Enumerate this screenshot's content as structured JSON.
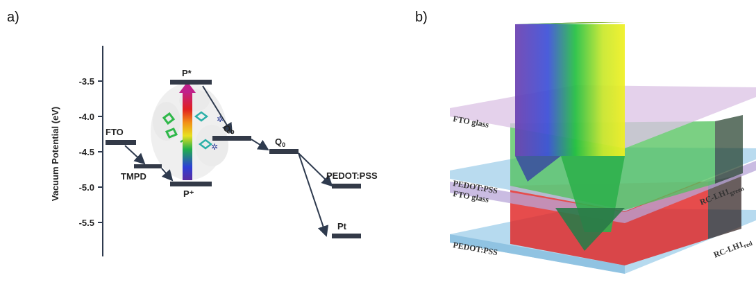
{
  "panels": {
    "a": "a)",
    "b": "b)"
  },
  "energy_diagram": {
    "ylabel": "Vacuum Potential (eV)",
    "ticks": [
      "-3.5",
      "-4.0",
      "-4.5",
      "-5.0",
      "-5.5"
    ],
    "levels": {
      "fto": "FTO",
      "tmpd": "TMPD",
      "p_star": "P*",
      "p_plus": "P⁺",
      "qb": "Q",
      "qb_sub": "b",
      "q0": "Q",
      "q0_sub": "0",
      "pedot": "PEDOT:PSS",
      "pt": "Pt"
    }
  },
  "device_stack": {
    "layers": {
      "fto_top": "FTO glass",
      "pedot_mid": "PEDOT:PSS",
      "fto_mid": "FTO glass",
      "pedot_bot": "PEDOT:PSS",
      "rc_green": "RC-LH1",
      "rc_green_sub": "green",
      "rc_red": "RC-LH1",
      "rc_red_sub": "red"
    }
  }
}
